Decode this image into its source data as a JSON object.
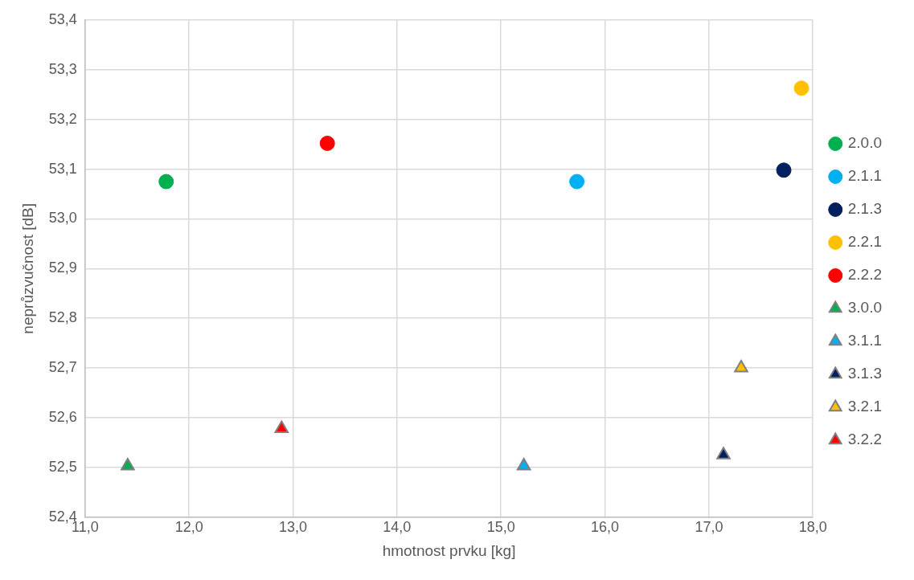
{
  "chart_data": {
    "type": "scatter",
    "xlabel": "hmotnost prvku [kg]",
    "ylabel": "neprůzvučnost [dB]",
    "xlim": [
      11,
      18
    ],
    "xticks": [
      {
        "value": 11,
        "label": "11,0"
      },
      {
        "value": 12,
        "label": "12,0"
      },
      {
        "value": 13,
        "label": "13,0"
      },
      {
        "value": 14,
        "label": "14,0"
      },
      {
        "value": 15,
        "label": "15,0"
      },
      {
        "value": 16,
        "label": "16,0"
      },
      {
        "value": 17,
        "label": "17,0"
      },
      {
        "value": 18,
        "label": "18,0"
      }
    ],
    "ylim": [
      52.4,
      53.4
    ],
    "yticks": [
      {
        "value": 52.4,
        "label": "52,4"
      },
      {
        "value": 52.5,
        "label": "52,5"
      },
      {
        "value": 52.6,
        "label": "52,6"
      },
      {
        "value": 52.7,
        "label": "52,7"
      },
      {
        "value": 52.8,
        "label": "52,8"
      },
      {
        "value": 52.9,
        "label": "52,9"
      },
      {
        "value": 53.0,
        "label": "53,0"
      },
      {
        "value": 53.1,
        "label": "53,1"
      },
      {
        "value": 53.2,
        "label": "53,2"
      },
      {
        "value": 53.3,
        "label": "53,3"
      },
      {
        "value": 53.4,
        "label": "53,4"
      }
    ],
    "grid": true,
    "legend": "right",
    "series": [
      {
        "name": "2.0.0",
        "color": "#00b050",
        "marker": "circle",
        "x": [
          11.78
        ],
        "values": [
          53.075
        ]
      },
      {
        "name": "2.1.1",
        "color": "#00b0f0",
        "marker": "circle",
        "x": [
          15.73
        ],
        "values": [
          53.075
        ]
      },
      {
        "name": "2.1.3",
        "color": "#002060",
        "marker": "circle",
        "x": [
          17.72
        ],
        "values": [
          53.098
        ]
      },
      {
        "name": "2.2.1",
        "color": "#ffc000",
        "marker": "circle",
        "x": [
          17.89
        ],
        "values": [
          53.263
        ]
      },
      {
        "name": "2.2.2",
        "color": "#ff0000",
        "marker": "circle",
        "x": [
          13.33
        ],
        "values": [
          53.152
        ]
      },
      {
        "name": "3.0.0",
        "color": "#00b050",
        "marker": "triangle",
        "x": [
          11.41
        ],
        "values": [
          52.503
        ]
      },
      {
        "name": "3.1.1",
        "color": "#00b0f0",
        "marker": "triangle",
        "x": [
          15.22
        ],
        "values": [
          52.503
        ]
      },
      {
        "name": "3.1.3",
        "color": "#002060",
        "marker": "triangle",
        "x": [
          17.14
        ],
        "values": [
          52.525
        ]
      },
      {
        "name": "3.2.1",
        "color": "#ffc000",
        "marker": "triangle",
        "x": [
          17.31
        ],
        "values": [
          52.7
        ]
      },
      {
        "name": "3.2.2",
        "color": "#ff0000",
        "marker": "triangle",
        "x": [
          12.89
        ],
        "values": [
          52.578
        ]
      }
    ]
  }
}
